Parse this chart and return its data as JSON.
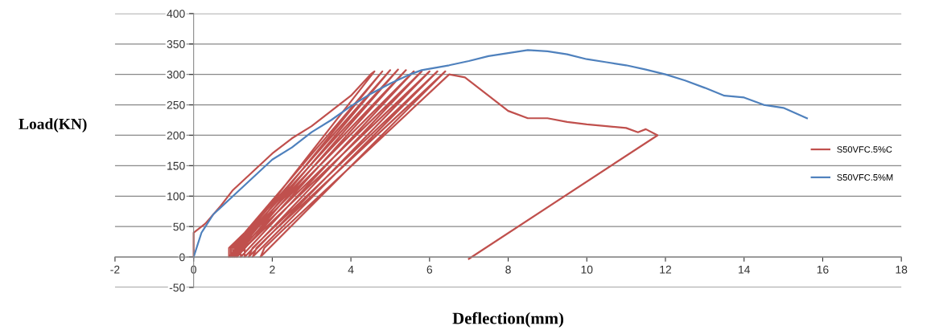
{
  "chart_data": {
    "type": "line",
    "xlabel": "Deflection(mm)",
    "ylabel": "Load(KN)",
    "xlim": [
      -2,
      18
    ],
    "xticks": [
      -2,
      0,
      2,
      4,
      6,
      8,
      10,
      12,
      14,
      16,
      18
    ],
    "ylim": [
      -50,
      400
    ],
    "yticks": [
      -50,
      0,
      50,
      100,
      150,
      200,
      250,
      300,
      350,
      400
    ],
    "grid": "y",
    "legend": "right",
    "marker": "none",
    "line_style": "solid",
    "series": [
      {
        "name": "S50VFC.5%C",
        "color": "#c0504d",
        "x": [
          0,
          0,
          0.3,
          0.7,
          1,
          1.5,
          2,
          2.5,
          3,
          3.5,
          4,
          4.5,
          4.6,
          0.9,
          0.9,
          1.3,
          4.8,
          0.95,
          0.95,
          1.35,
          5.0,
          1.0,
          1.0,
          1.4,
          5.2,
          1.05,
          1.05,
          1.45,
          5.4,
          1.1,
          1.1,
          1.5,
          5.6,
          1.2,
          1.2,
          1.6,
          5.8,
          1.3,
          1.3,
          1.7,
          6.0,
          1.4,
          1.5,
          1.9,
          6.2,
          1.5,
          1.6,
          2.0,
          6.4,
          1.7,
          1.8,
          2.2,
          6.5,
          6.9,
          7.5,
          8,
          8.5,
          9,
          9.5,
          10,
          10.5,
          11,
          11.3,
          11.5,
          11.8,
          7.0
        ],
        "values": [
          0,
          40,
          55,
          85,
          110,
          140,
          170,
          195,
          215,
          240,
          265,
          300,
          305,
          0,
          15,
          40,
          305,
          0,
          15,
          40,
          307,
          0,
          15,
          40,
          308,
          0,
          15,
          40,
          307,
          0,
          15,
          40,
          305,
          0,
          15,
          40,
          305,
          0,
          15,
          40,
          305,
          0,
          15,
          40,
          305,
          0,
          15,
          40,
          305,
          0,
          15,
          40,
          300,
          295,
          265,
          240,
          228,
          228,
          222,
          218,
          215,
          212,
          205,
          210,
          200,
          -3
        ]
      },
      {
        "name": "S50VFC.5%M",
        "color": "#4f81bd",
        "x": [
          0,
          0.2,
          0.5,
          1,
          1.5,
          2,
          2.5,
          3,
          3.5,
          4,
          4.5,
          5,
          5.5,
          5.8,
          6.5,
          7,
          7.5,
          8,
          8.5,
          9,
          9.5,
          10,
          10.5,
          11,
          11.5,
          12,
          12.5,
          13,
          13.5,
          14,
          14.5,
          15,
          15.6
        ],
        "values": [
          0,
          40,
          70,
          100,
          130,
          160,
          180,
          205,
          225,
          248,
          268,
          285,
          300,
          307,
          315,
          322,
          330,
          335,
          340,
          338,
          333,
          325,
          320,
          315,
          308,
          300,
          290,
          278,
          265,
          262,
          250,
          245,
          228
        ]
      }
    ]
  }
}
